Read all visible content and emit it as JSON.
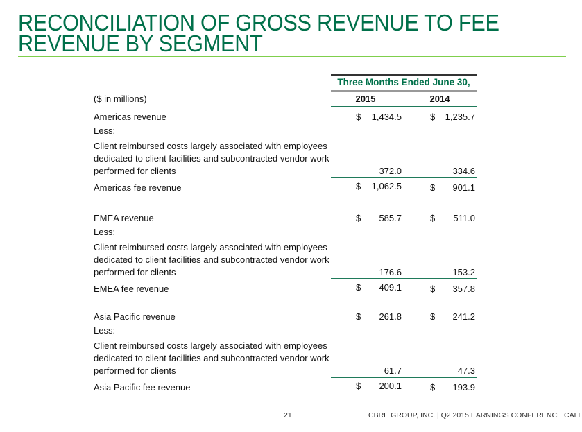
{
  "title_lines": [
    "RECONCILIATION OF GROSS REVENUE TO FEE",
    "REVENUE BY SEGMENT"
  ],
  "table": {
    "period_header": "Three Months Ended June 30,",
    "units_label": "($ in millions)",
    "years": [
      "2015",
      "2014"
    ],
    "segments": [
      {
        "revenue_label": "Americas revenue",
        "revenue": [
          "1,434.5",
          "1,235.7"
        ],
        "less_label": "Less:",
        "cost_label_lines": [
          "Client reimbursed costs largely associated with employees",
          "dedicated to client facilities and subcontracted vendor work",
          "performed for clients"
        ],
        "cost": [
          "372.0",
          "334.6"
        ],
        "fee_label": "Americas fee revenue",
        "fee": [
          "1,062.5",
          "901.1"
        ]
      },
      {
        "revenue_label": "EMEA revenue",
        "revenue": [
          "585.7",
          "511.0"
        ],
        "less_label": "Less:",
        "cost_label_lines": [
          "Client reimbursed costs largely associated with employees",
          "dedicated to client facilities and subcontracted vendor work",
          "performed for clients"
        ],
        "cost": [
          "176.6",
          "153.2"
        ],
        "fee_label": "EMEA fee revenue",
        "fee": [
          "409.1",
          "357.8"
        ]
      },
      {
        "revenue_label": "Asia Pacific revenue",
        "revenue": [
          "261.8",
          "241.2"
        ],
        "less_label": "Less:",
        "cost_label_lines": [
          "Client reimbursed costs largely associated with employees",
          "dedicated to client facilities and subcontracted vendor work",
          "performed for clients"
        ],
        "cost": [
          "61.7",
          "47.3"
        ],
        "fee_label": "Asia Pacific fee revenue",
        "fee": [
          "200.1",
          "193.9"
        ]
      }
    ],
    "currency_symbol": "$"
  },
  "footer": {
    "page_number": "21",
    "text": "CBRE GROUP, INC. | Q2 2015 EARNINGS CONFERENCE CALL"
  },
  "colors": {
    "title": "#00704a",
    "rule": "#7fcf4c",
    "table_rule": "#1f7a5a"
  }
}
